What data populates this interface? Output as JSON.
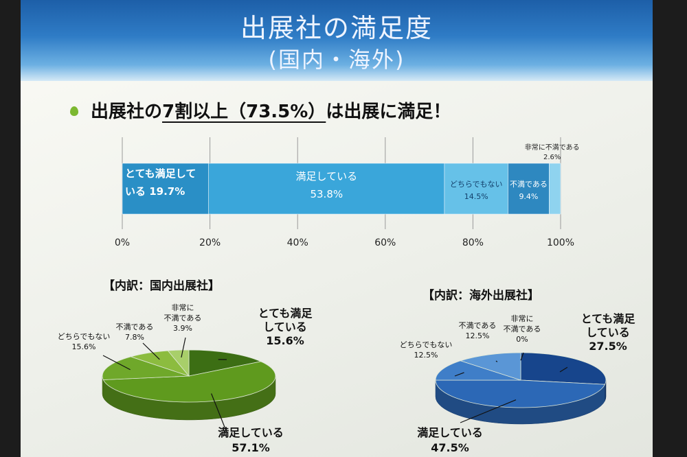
{
  "slide": {
    "title": "出展社の満足度",
    "subtitle": "(国内・海外)",
    "bullet": {
      "prefix": "出展社の",
      "emphasis": "7割以上（73.5%）",
      "suffix": "は出展に満足！"
    }
  },
  "colors": {
    "header": "#2f7cc6",
    "bar_segments": [
      "#2a8fc6",
      "#3aa6da",
      "#66c1e8",
      "#2e88c0",
      "#8fd3ef"
    ],
    "domestic_pie": [
      "#3c6e14",
      "#5f9a1e",
      "#6fa82a",
      "#8cbc3f",
      "#a8cf6a"
    ],
    "overseas_pie": [
      "#17458c",
      "#2c68b6",
      "#3f7ec8",
      "#5a96d6",
      "#7fb2e2"
    ]
  },
  "chart_data": [
    {
      "type": "bar",
      "orientation": "horizontal-stacked",
      "xlim": [
        0,
        100
      ],
      "x_ticks": [
        "0%",
        "20%",
        "40%",
        "60%",
        "80%",
        "100%"
      ],
      "series": [
        {
          "name": "とても満足している",
          "value": 19.7,
          "label_lines": [
            "とても満足して",
            "いる 19.7%"
          ]
        },
        {
          "name": "満足している",
          "value": 53.8,
          "label_lines": [
            "満足している",
            "53.8%"
          ]
        },
        {
          "name": "どちらでもない",
          "value": 14.5,
          "label_lines": [
            "どちらでもない",
            "14.5%"
          ]
        },
        {
          "name": "不満である",
          "value": 9.4,
          "label_lines": [
            "不満である",
            "9.4%"
          ]
        },
        {
          "name": "非常に不満である",
          "value": 2.6,
          "label_lines": [
            "非常に不満である",
            "2.6%"
          ]
        }
      ]
    },
    {
      "type": "pie",
      "title": "【内訳：国内出展社】",
      "slices": [
        {
          "name": "とても満足している",
          "value": 15.6,
          "label_lines": [
            "とても満足",
            "している",
            "15.6%"
          ]
        },
        {
          "name": "満足している",
          "value": 57.1,
          "label_lines": [
            "満足している",
            "57.1%"
          ]
        },
        {
          "name": "どちらでもない",
          "value": 15.6,
          "label_lines": [
            "どちらでもない",
            "15.6%"
          ]
        },
        {
          "name": "不満である",
          "value": 7.8,
          "label_lines": [
            "不満である",
            "7.8%"
          ]
        },
        {
          "name": "非常に不満である",
          "value": 3.9,
          "label_lines": [
            "非常に",
            "不満である",
            "3.9%"
          ]
        }
      ]
    },
    {
      "type": "pie",
      "title": "【内訳：海外出展社】",
      "slices": [
        {
          "name": "とても満足している",
          "value": 27.5,
          "label_lines": [
            "とても満足",
            "している",
            "27.5%"
          ]
        },
        {
          "name": "満足している",
          "value": 47.5,
          "label_lines": [
            "満足している",
            "47.5%"
          ]
        },
        {
          "name": "どちらでもない",
          "value": 12.5,
          "label_lines": [
            "どちらでもない",
            "12.5%"
          ]
        },
        {
          "name": "不満である",
          "value": 12.5,
          "label_lines": [
            "不満である",
            "12.5%"
          ]
        },
        {
          "name": "非常に不満である",
          "value": 0,
          "label_lines": [
            "非常に",
            "不満である",
            "0%"
          ]
        }
      ]
    }
  ]
}
